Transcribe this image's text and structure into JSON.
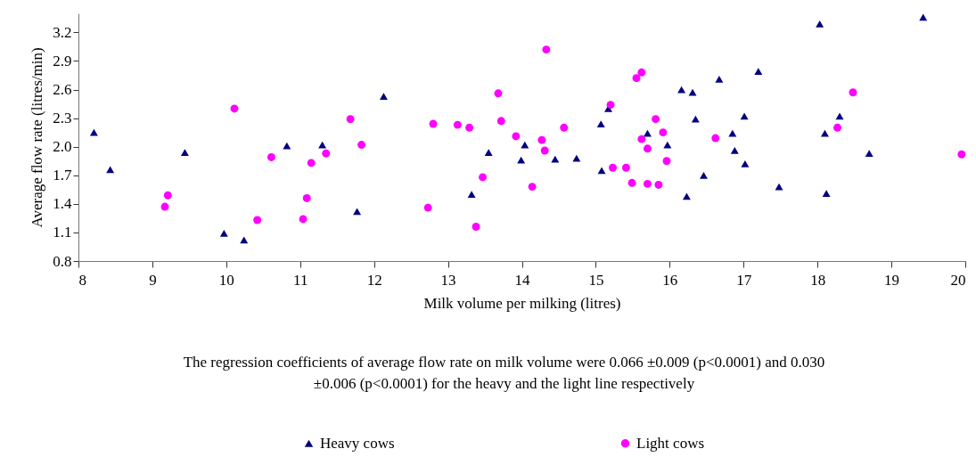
{
  "chart_data": {
    "type": "scatter",
    "xlabel": "Milk volume per milking (litres)",
    "ylabel": "Average flow rate (litres/min)",
    "annotations": [
      "The regression coefficients of average flow rate on milk volume were 0.066 ±0.009  (p<0.0001) and 0.030 ±0.006 (p<0.0001) for the heavy and the light line respectively"
    ],
    "xlim": [
      8,
      20
    ],
    "xticks": [
      8,
      9,
      10,
      11,
      12,
      13,
      14,
      15,
      16,
      17,
      18,
      19,
      20
    ],
    "ylim": [
      0.8,
      3.4
    ],
    "yticks": [
      0.8,
      1.1,
      1.4,
      1.7,
      {
        "value": 2,
        "label": "2.0"
      },
      2.3,
      2.6,
      2.9,
      3.2
    ],
    "grid": false,
    "legend": "bottom",
    "series": [
      {
        "name": "Heavy cows",
        "color": "#000080",
        "marker": "triangle",
        "x": [
          8.21,
          8.43,
          9.44,
          9.97,
          10.24,
          10.82,
          11.3,
          11.77,
          12.13,
          13.32,
          13.55,
          13.99,
          14.04,
          14.45,
          14.74,
          15.07,
          15.08,
          15.17,
          15.7,
          15.97,
          16.16,
          16.23,
          16.31,
          16.35,
          16.46,
          16.67,
          16.85,
          16.88,
          17.01,
          17.02,
          17.2,
          17.48,
          18.03,
          18.1,
          18.12,
          18.3,
          18.7,
          19.43
        ],
        "values": [
          2.15,
          1.76,
          1.94,
          1.09,
          1.02,
          2.01,
          2.02,
          1.32,
          2.53,
          1.5,
          1.94,
          1.86,
          2.02,
          1.87,
          1.88,
          2.24,
          1.75,
          2.4,
          2.14,
          2.02,
          2.6,
          1.48,
          2.57,
          2.29,
          1.7,
          2.71,
          2.14,
          1.96,
          2.32,
          1.82,
          2.79,
          1.58,
          3.29,
          2.14,
          1.51,
          2.32,
          1.93,
          3.36
        ]
      },
      {
        "name": "Light cows",
        "color": "#ff00ff",
        "marker": "circle",
        "x": [
          9.17,
          9.21,
          10.11,
          10.42,
          10.61,
          11.04,
          11.09,
          11.15,
          11.35,
          11.68,
          11.83,
          12.73,
          12.8,
          13.13,
          13.29,
          13.38,
          13.47,
          13.68,
          13.72,
          13.92,
          14.14,
          14.27,
          14.31,
          14.33,
          14.57,
          15.2,
          15.23,
          15.41,
          15.49,
          15.55,
          15.62,
          15.62,
          15.7,
          15.7,
          15.81,
          15.85,
          15.91,
          15.96,
          16.62,
          18.27,
          18.48,
          19.95
        ],
        "values": [
          1.37,
          1.49,
          2.4,
          1.23,
          1.89,
          1.24,
          1.46,
          1.83,
          1.93,
          2.29,
          2.02,
          1.36,
          2.24,
          2.23,
          2.2,
          1.16,
          1.68,
          2.56,
          2.27,
          2.11,
          1.58,
          2.07,
          1.96,
          3.02,
          2.2,
          2.44,
          1.78,
          1.78,
          1.62,
          2.72,
          2.78,
          2.08,
          1.98,
          1.61,
          2.29,
          1.6,
          2.15,
          1.85,
          2.09,
          2.2,
          2.57,
          1.92
        ]
      }
    ]
  }
}
